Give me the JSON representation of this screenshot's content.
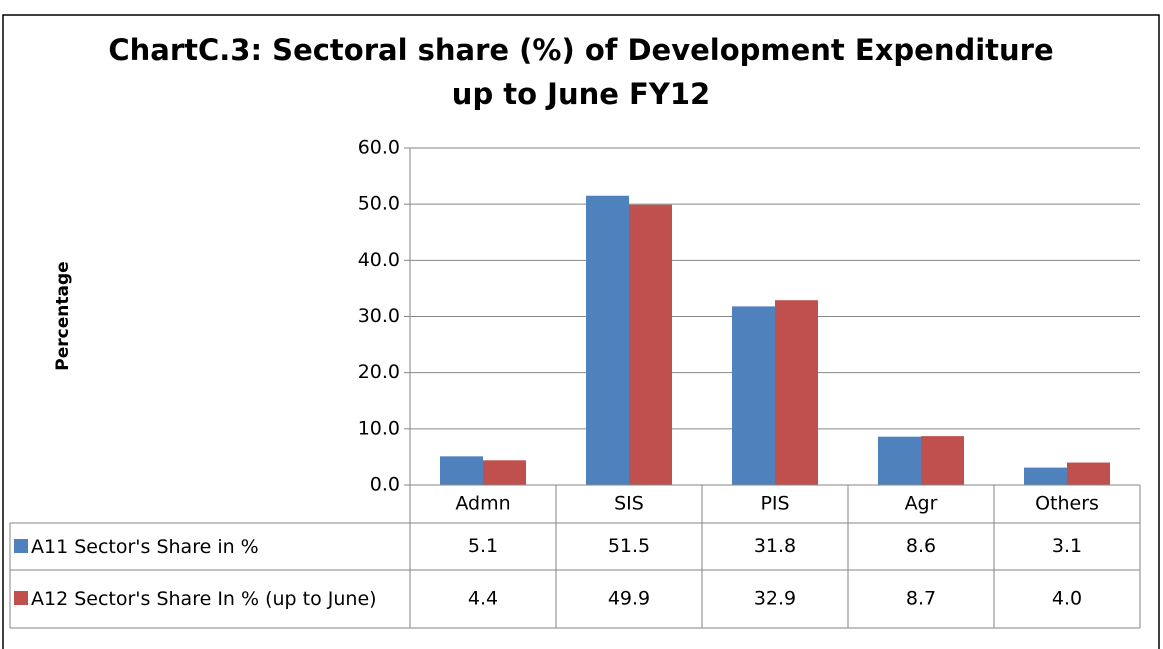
{
  "chart_data": {
    "type": "bar",
    "title": "ChartC.3: Sectoral share (%) of Development Expenditure",
    "subtitle": "up to June FY12",
    "y_label": "Percentage",
    "categories": [
      "Admn",
      "SIS",
      "PIS",
      "Agr",
      "Others"
    ],
    "series": [
      {
        "name": "A11 Sector's Share in %",
        "color": "#4f81bd",
        "values": [
          5.1,
          51.5,
          31.8,
          8.6,
          3.1
        ],
        "value_labels": [
          "5.1",
          "51.5",
          "31.8",
          "8.6",
          "3.1"
        ]
      },
      {
        "name": "A12 Sector's Share In % (up to June)",
        "color": "#c0504d",
        "values": [
          4.4,
          49.9,
          32.9,
          8.7,
          4
        ],
        "value_labels": [
          "4.4",
          "49.9",
          "32.9",
          "8.7",
          "4.0"
        ]
      }
    ],
    "ylim": [
      0,
      60
    ],
    "yticks": [
      {
        "value": 0,
        "label": "0.0"
      },
      {
        "value": 10,
        "label": "10.0"
      },
      {
        "value": 20,
        "label": "20.0"
      },
      {
        "value": 30,
        "label": "30.0"
      },
      {
        "value": 40,
        "label": "40.0"
      },
      {
        "value": 50,
        "label": "50.0"
      },
      {
        "value": 60,
        "label": "60.0"
      }
    ],
    "grid": true
  }
}
